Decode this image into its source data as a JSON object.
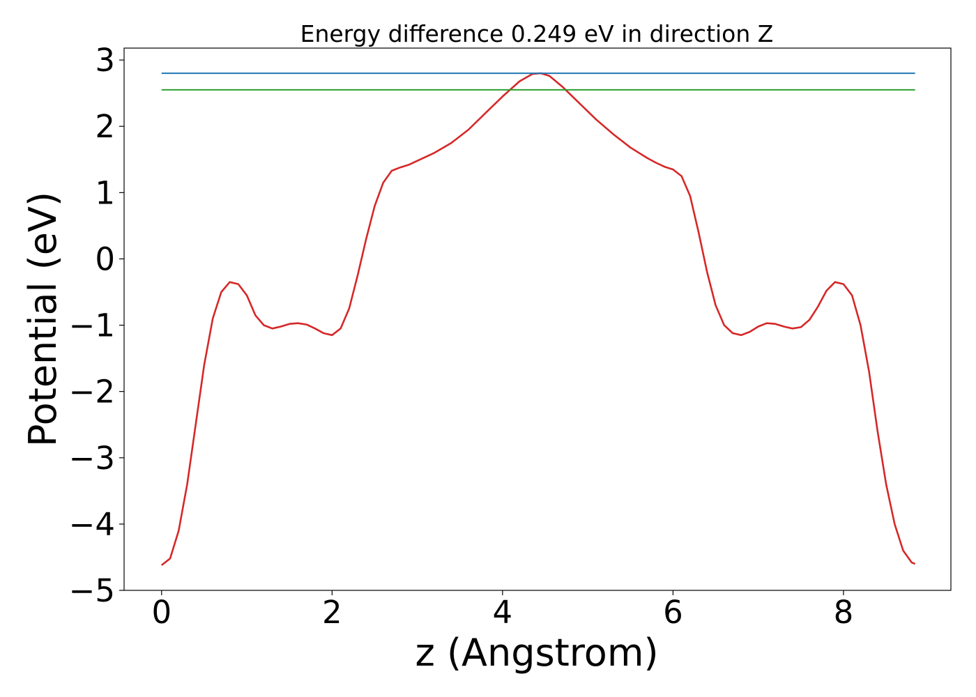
{
  "chart_data": {
    "type": "line",
    "title": "Energy difference 0.249 eV in direction Z",
    "xlabel": "z (Angstrom)",
    "ylabel": "Potential (eV)",
    "xlim": [
      -0.44,
      9.26
    ],
    "ylim": [
      -5,
      3.18
    ],
    "xticks": [
      0,
      2,
      4,
      6,
      8
    ],
    "xtick_labels": [
      "0",
      "2",
      "4",
      "6",
      "8"
    ],
    "yticks": [
      -5,
      -4,
      -3,
      -2,
      -1,
      0,
      1,
      2,
      3
    ],
    "ytick_labels": [
      "−5",
      "−4",
      "−3",
      "−2",
      "−1",
      "0",
      "1",
      "2",
      "3"
    ],
    "grid": false,
    "legend": "none",
    "series": [
      {
        "color": "#d62728",
        "x": [
          0.0,
          0.1,
          0.2,
          0.3,
          0.4,
          0.5,
          0.6,
          0.7,
          0.8,
          0.9,
          1.0,
          1.1,
          1.2,
          1.3,
          1.4,
          1.5,
          1.6,
          1.7,
          1.8,
          1.9,
          2.0,
          2.1,
          2.2,
          2.3,
          2.4,
          2.5,
          2.6,
          2.7,
          2.8,
          2.9,
          3.0,
          3.2,
          3.4,
          3.6,
          3.8,
          4.0,
          4.2,
          4.35,
          4.45,
          4.55,
          4.7,
          4.9,
          5.1,
          5.3,
          5.5,
          5.7,
          5.8,
          5.9,
          6.0,
          6.1,
          6.2,
          6.3,
          6.4,
          6.5,
          6.6,
          6.7,
          6.8,
          6.9,
          7.0,
          7.1,
          7.2,
          7.3,
          7.4,
          7.5,
          7.6,
          7.7,
          7.8,
          7.9,
          8.0,
          8.1,
          8.2,
          8.3,
          8.4,
          8.5,
          8.6,
          8.7,
          8.8,
          8.84
        ],
        "values": [
          -4.62,
          -4.52,
          -4.1,
          -3.4,
          -2.5,
          -1.6,
          -0.9,
          -0.5,
          -0.35,
          -0.38,
          -0.55,
          -0.85,
          -1.0,
          -1.05,
          -1.02,
          -0.98,
          -0.97,
          -0.99,
          -1.05,
          -1.12,
          -1.15,
          -1.05,
          -0.75,
          -0.25,
          0.3,
          0.8,
          1.15,
          1.33,
          1.38,
          1.42,
          1.48,
          1.6,
          1.75,
          1.95,
          2.2,
          2.45,
          2.68,
          2.79,
          2.8,
          2.76,
          2.6,
          2.35,
          2.1,
          1.88,
          1.68,
          1.52,
          1.45,
          1.39,
          1.35,
          1.25,
          0.95,
          0.4,
          -0.2,
          -0.7,
          -1.0,
          -1.12,
          -1.15,
          -1.1,
          -1.02,
          -0.97,
          -0.98,
          -1.02,
          -1.05,
          -1.03,
          -0.92,
          -0.72,
          -0.48,
          -0.35,
          -0.38,
          -0.55,
          -1.0,
          -1.7,
          -2.6,
          -3.4,
          -4.0,
          -4.4,
          -4.58,
          -4.6
        ]
      },
      {
        "color": "#1f77b4",
        "x": [
          0.0,
          8.84
        ],
        "values": [
          2.8,
          2.8
        ]
      },
      {
        "color": "#2ca02c",
        "x": [
          0.0,
          8.84
        ],
        "values": [
          2.55,
          2.55
        ]
      }
    ]
  }
}
